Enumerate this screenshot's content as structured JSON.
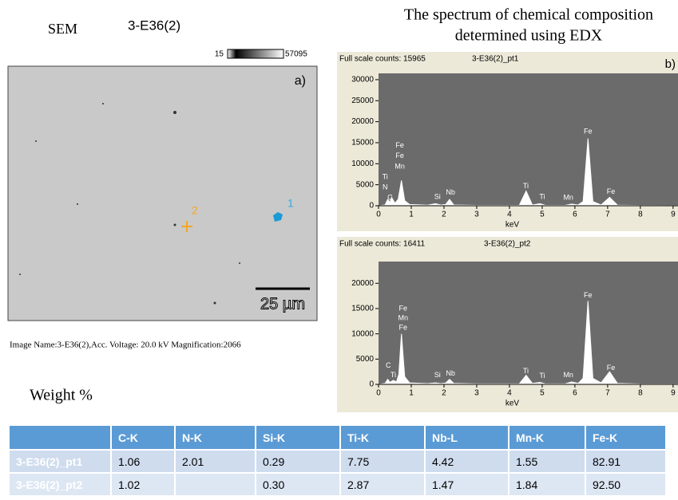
{
  "sem": {
    "label": "SEM",
    "sample": "3-E36(2)",
    "scale_min": "15",
    "scale_max": "57095",
    "panel": "a)",
    "points": [
      "1",
      "2"
    ],
    "scale_bar": "25 µm",
    "caption": "Image Name:3-E36(2),Acc. Voltage: 20.0 kV Magnification:2066"
  },
  "edx_title": [
    "The spectrum of chemical composition",
    "determined using EDX"
  ],
  "chart_data": [
    {
      "type": "line",
      "subtitle": "Full scale counts: 15965",
      "title": "3-E36(2)_pt1",
      "panel": "b)",
      "x_label": "keV",
      "x": [
        0,
        0.2,
        0.28,
        0.35,
        0.4,
        0.5,
        0.6,
        0.7,
        0.8,
        0.95,
        1.5,
        1.74,
        1.9,
        2.05,
        2.17,
        2.3,
        3,
        4.3,
        4.51,
        4.7,
        4.93,
        5.1,
        5.7,
        5.9,
        6.1,
        6.25,
        6.4,
        6.55,
        6.8,
        7.06,
        7.3,
        8,
        9.15
      ],
      "values": [
        0,
        200,
        1500,
        800,
        2000,
        600,
        1500,
        6000,
        1200,
        300,
        150,
        500,
        200,
        300,
        1500,
        200,
        100,
        100,
        3500,
        200,
        500,
        100,
        100,
        400,
        200,
        1000,
        16000,
        1000,
        200,
        2000,
        150,
        80,
        50
      ],
      "xlim": [
        0,
        9.15
      ],
      "ylim": [
        0,
        31500
      ],
      "xticks": [
        0,
        1,
        2,
        3,
        4,
        5,
        6,
        7,
        8,
        9
      ],
      "yticks": [
        0,
        5000,
        10000,
        15000,
        20000,
        25000,
        30000
      ],
      "annotations": [
        {
          "text": "Fe",
          "x": 0.65,
          "y": 14300
        },
        {
          "text": "Fe",
          "x": 0.65,
          "y": 11800
        },
        {
          "text": "Mn",
          "x": 0.65,
          "y": 9300
        },
        {
          "text": "Ti",
          "x": 0.2,
          "y": 6800
        },
        {
          "text": "N",
          "x": 0.2,
          "y": 4300
        },
        {
          "text": "C",
          "x": 0.35,
          "y": 1900
        },
        {
          "text": "Si",
          "x": 1.8,
          "y": 2100
        },
        {
          "text": "Nb",
          "x": 2.2,
          "y": 3100
        },
        {
          "text": "Ti",
          "x": 4.5,
          "y": 4600
        },
        {
          "text": "Ti",
          "x": 5.0,
          "y": 2100
        },
        {
          "text": "Mn",
          "x": 5.8,
          "y": 1900
        },
        {
          "text": "Fe",
          "x": 6.4,
          "y": 17600
        },
        {
          "text": "Fe",
          "x": 7.1,
          "y": 3300
        }
      ]
    },
    {
      "type": "line",
      "subtitle": "Full scale counts: 16411",
      "title": "3-E36(2)_pt2",
      "x_label": "keV",
      "x": [
        0,
        0.2,
        0.28,
        0.35,
        0.45,
        0.55,
        0.62,
        0.7,
        0.8,
        0.95,
        1.5,
        1.74,
        1.9,
        2.05,
        2.17,
        2.3,
        3,
        4.3,
        4.51,
        4.7,
        4.93,
        5.1,
        5.7,
        5.9,
        6.1,
        6.25,
        6.4,
        6.55,
        6.8,
        7.06,
        7.3,
        8,
        9.15
      ],
      "values": [
        0,
        200,
        1000,
        400,
        800,
        500,
        2000,
        10000,
        1500,
        300,
        150,
        300,
        150,
        250,
        1000,
        200,
        100,
        100,
        1800,
        200,
        400,
        100,
        100,
        500,
        200,
        1200,
        16500,
        1200,
        300,
        2500,
        200,
        80,
        50
      ],
      "xlim": [
        0,
        9.15
      ],
      "ylim": [
        0,
        24300
      ],
      "xticks": [
        0,
        1,
        2,
        3,
        4,
        5,
        6,
        7,
        8,
        9
      ],
      "yticks": [
        0,
        5000,
        10000,
        15000,
        20000
      ],
      "annotations": [
        {
          "text": "Fe",
          "x": 0.75,
          "y": 15000
        },
        {
          "text": "Mn",
          "x": 0.75,
          "y": 13100
        },
        {
          "text": "Fe",
          "x": 0.75,
          "y": 11200
        },
        {
          "text": "C",
          "x": 0.3,
          "y": 3700
        },
        {
          "text": "Ti",
          "x": 0.45,
          "y": 1800
        },
        {
          "text": "Si",
          "x": 1.8,
          "y": 1800
        },
        {
          "text": "Nb",
          "x": 2.2,
          "y": 2100
        },
        {
          "text": "Ti",
          "x": 4.5,
          "y": 2600
        },
        {
          "text": "Ti",
          "x": 5.0,
          "y": 1600
        },
        {
          "text": "Mn",
          "x": 5.8,
          "y": 1800
        },
        {
          "text": "Fe",
          "x": 6.4,
          "y": 17600
        },
        {
          "text": "Fe",
          "x": 7.1,
          "y": 3200
        }
      ]
    }
  ],
  "weight_title": "Weight %",
  "table": {
    "header": [
      null,
      "C-K",
      "N-K",
      "Si-K",
      "Ti-K",
      "Nb-L",
      "Mn-K",
      "Fe-K"
    ],
    "rows": [
      [
        "3-E36(2)_pt1",
        "1.06",
        "2.01",
        "0.29",
        "7.75",
        "4.42",
        "1.55",
        "82.91"
      ],
      [
        "3-E36(2)_pt2",
        "1.02",
        null,
        "0.30",
        "2.87",
        "1.47",
        "1.84",
        "92.50"
      ]
    ]
  }
}
